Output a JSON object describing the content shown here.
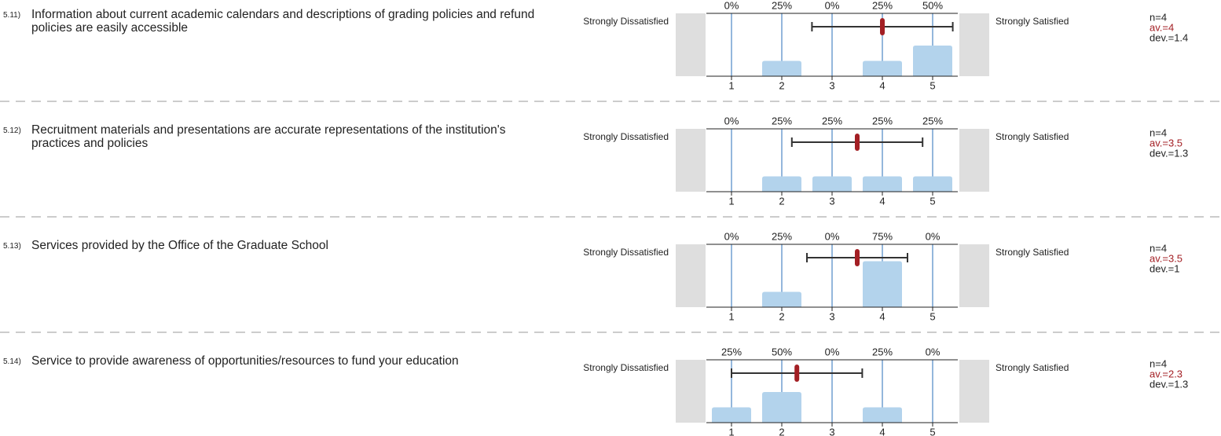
{
  "chart_data": [
    {
      "type": "bar",
      "number": "5.11)",
      "title": "Information about current academic calendars and descriptions of grading policies and refund policies are easily accessible",
      "left_label": "Strongly Dissatisfied",
      "right_label": "Strongly Satisfied",
      "x": [
        1,
        2,
        3,
        4,
        5
      ],
      "xlim": [
        0.5,
        5.5
      ],
      "xticks": [
        1,
        2,
        3,
        4,
        5
      ],
      "values": [
        0,
        25,
        0,
        25,
        50
      ],
      "value_labels": [
        "0%",
        "25%",
        "0%",
        "25%",
        "50%"
      ],
      "ylim": [
        0,
        100
      ],
      "color": "#b3d3ec",
      "n": 4,
      "n_label": "n=4",
      "mean": 4,
      "mean_label": "av.=4",
      "dev": 1.4,
      "dev_label": "dev.=1.4",
      "mean_color": "#a31f24"
    },
    {
      "type": "bar",
      "number": "5.12)",
      "title": "Recruitment materials and presentations are accurate representations of the institution's practices and policies",
      "left_label": "Strongly Dissatisfied",
      "right_label": "Strongly Satisfied",
      "x": [
        1,
        2,
        3,
        4,
        5
      ],
      "xlim": [
        0.5,
        5.5
      ],
      "xticks": [
        1,
        2,
        3,
        4,
        5
      ],
      "values": [
        0,
        25,
        25,
        25,
        25
      ],
      "value_labels": [
        "0%",
        "25%",
        "25%",
        "25%",
        "25%"
      ],
      "ylim": [
        0,
        100
      ],
      "color": "#b3d3ec",
      "n": 4,
      "n_label": "n=4",
      "mean": 3.5,
      "mean_label": "av.=3.5",
      "dev": 1.3,
      "dev_label": "dev.=1.3",
      "mean_color": "#a31f24"
    },
    {
      "type": "bar",
      "number": "5.13)",
      "title": "Services provided by the Office of the Graduate School",
      "left_label": "Strongly Dissatisfied",
      "right_label": "Strongly Satisfied",
      "x": [
        1,
        2,
        3,
        4,
        5
      ],
      "xlim": [
        0.5,
        5.5
      ],
      "xticks": [
        1,
        2,
        3,
        4,
        5
      ],
      "values": [
        0,
        25,
        0,
        75,
        0
      ],
      "value_labels": [
        "0%",
        "25%",
        "0%",
        "75%",
        "0%"
      ],
      "ylim": [
        0,
        100
      ],
      "color": "#b3d3ec",
      "n": 4,
      "n_label": "n=4",
      "mean": 3.5,
      "mean_label": "av.=3.5",
      "dev": 1,
      "dev_label": "dev.=1",
      "mean_color": "#a31f24"
    },
    {
      "type": "bar",
      "number": "5.14)",
      "title": "Service to provide awareness of opportunities/resources to fund your education",
      "left_label": "Strongly Dissatisfied",
      "right_label": "Strongly Satisfied",
      "x": [
        1,
        2,
        3,
        4,
        5
      ],
      "xlim": [
        0.5,
        5.5
      ],
      "xticks": [
        1,
        2,
        3,
        4,
        5
      ],
      "values": [
        25,
        50,
        0,
        25,
        0
      ],
      "value_labels": [
        "25%",
        "50%",
        "0%",
        "25%",
        "0%"
      ],
      "ylim": [
        0,
        100
      ],
      "color": "#b3d3ec",
      "n": 4,
      "n_label": "n=4",
      "mean": 2.3,
      "mean_label": "av.=2.3",
      "dev": 1.3,
      "dev_label": "dev.=1.3",
      "mean_color": "#a31f24"
    }
  ]
}
